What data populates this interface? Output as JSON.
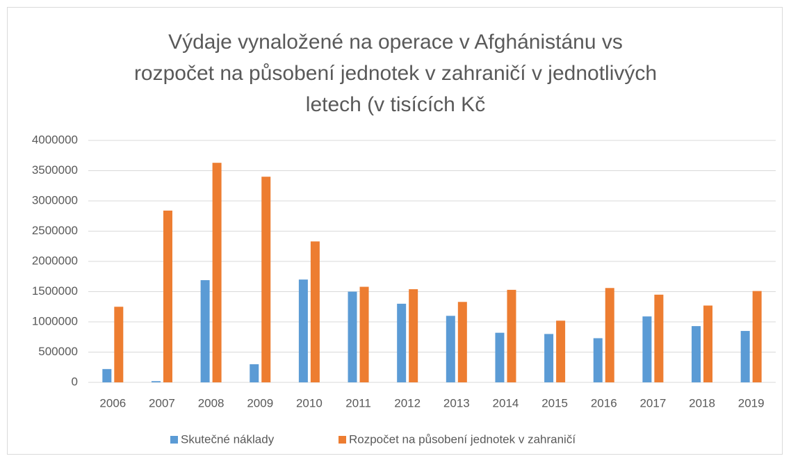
{
  "chart_data": {
    "type": "bar",
    "title": "Výdaje vynaložené na operace v Afghánistánu vs rozpočet na působení jednotek v zahraničí v jednotlivých letech (v tisících Kč",
    "categories": [
      "2006",
      "2007",
      "2008",
      "2009",
      "2010",
      "2011",
      "2012",
      "2013",
      "2014",
      "2015",
      "2016",
      "2017",
      "2018",
      "2019"
    ],
    "series": [
      {
        "name": "Skutečné náklady",
        "color": "#5b9bd5",
        "values": [
          220000,
          20000,
          1690000,
          300000,
          1700000,
          1500000,
          1300000,
          1100000,
          820000,
          800000,
          730000,
          1090000,
          930000,
          850000
        ]
      },
      {
        "name": "Rozpočet na působení jednotek v zahraničí",
        "color": "#ed7d31",
        "values": [
          1250000,
          2840000,
          3630000,
          3400000,
          2330000,
          1580000,
          1540000,
          1330000,
          1530000,
          1020000,
          1560000,
          1450000,
          1270000,
          1510000
        ]
      }
    ],
    "ylim": [
      0,
      4000000
    ],
    "yticks": [
      0,
      500000,
      1000000,
      1500000,
      2000000,
      2500000,
      3000000,
      3500000,
      4000000
    ],
    "grid": true,
    "legend": "bottom"
  }
}
